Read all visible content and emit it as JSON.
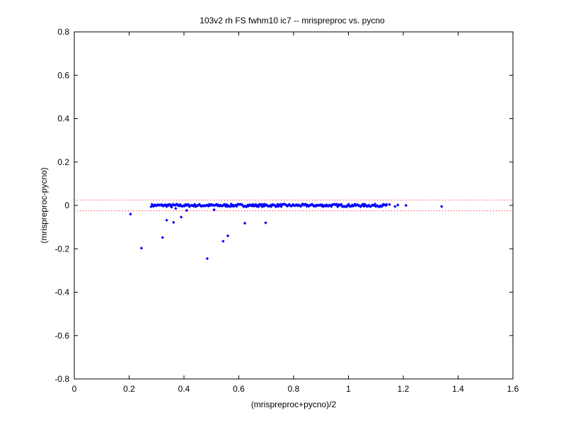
{
  "chart_data": {
    "type": "scatter",
    "title": "103v2 rh FS fwhm10 ic7 -- mrispreproc vs. pycno",
    "xlabel": "(mrispreproc+pycno)/2",
    "ylabel": "(mrispreproc-pycno)",
    "xlim": [
      0,
      1.6
    ],
    "ylim": [
      -0.8,
      0.8
    ],
    "xticks": [
      "0",
      "0.2",
      "0.4",
      "0.6",
      "0.8",
      "1",
      "1.2",
      "1.4",
      "1.6"
    ],
    "yticks": [
      "-0.8",
      "-0.6",
      "-0.4",
      "-0.2",
      "0",
      "0.2",
      "0.4",
      "0.6",
      "0.8"
    ],
    "grid": false,
    "marker_color": "#0000ff",
    "reference_line_color": "#ff0000",
    "reference_lines_y": [
      0.025,
      -0.025
    ],
    "dense_band": {
      "x_from": 0.28,
      "x_to": 1.14,
      "y_center": 0.0,
      "y_spread": 0.006
    },
    "points": [
      {
        "x": 0.205,
        "y": -0.04
      },
      {
        "x": 0.245,
        "y": -0.197
      },
      {
        "x": 0.322,
        "y": -0.148
      },
      {
        "x": 0.337,
        "y": -0.068
      },
      {
        "x": 0.355,
        "y": -0.008
      },
      {
        "x": 0.362,
        "y": -0.078
      },
      {
        "x": 0.37,
        "y": -0.014
      },
      {
        "x": 0.39,
        "y": -0.054
      },
      {
        "x": 0.41,
        "y": -0.023
      },
      {
        "x": 0.485,
        "y": -0.245
      },
      {
        "x": 0.51,
        "y": -0.02
      },
      {
        "x": 0.543,
        "y": -0.165
      },
      {
        "x": 0.56,
        "y": -0.14
      },
      {
        "x": 0.622,
        "y": -0.082
      },
      {
        "x": 0.698,
        "y": -0.08
      },
      {
        "x": 1.15,
        "y": 0.004
      },
      {
        "x": 1.17,
        "y": -0.005
      },
      {
        "x": 1.18,
        "y": 0.002
      },
      {
        "x": 1.21,
        "y": 0.0
      },
      {
        "x": 1.34,
        "y": -0.005
      }
    ]
  }
}
